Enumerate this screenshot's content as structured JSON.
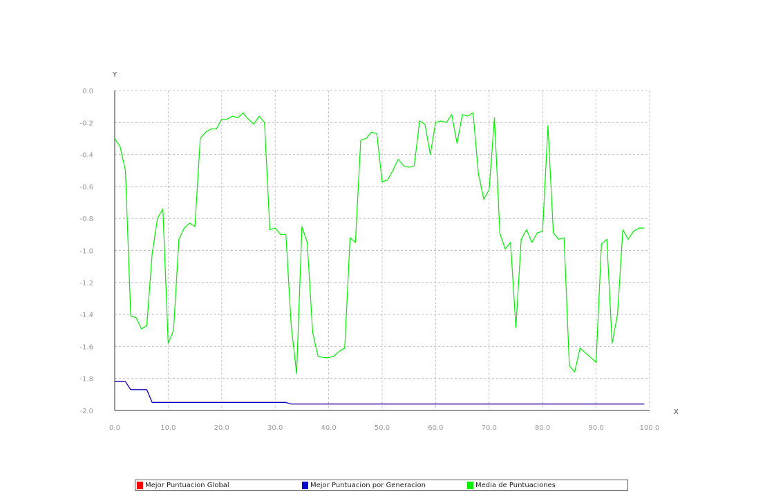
{
  "chart_data": {
    "type": "line",
    "xlabel": "X",
    "ylabel": "Y",
    "xlim": [
      0,
      100
    ],
    "ylim": [
      -2.0,
      0.0
    ],
    "x_ticks": [
      "0.0",
      "10.0",
      "20.0",
      "30.0",
      "40.0",
      "50.0",
      "60.0",
      "70.0",
      "80.0",
      "90.0",
      "100.0"
    ],
    "y_ticks": [
      "0.0",
      "-0.2",
      "-0.4",
      "-0.6",
      "-0.8",
      "-1.0",
      "-1.2",
      "-1.4",
      "-1.6",
      "-1.8",
      "-2.0"
    ],
    "grid": true,
    "legend_position": "bottom",
    "series": [
      {
        "name": "Mejor Puntuacion Global",
        "color": "#ff0000",
        "points": [
          [
            0,
            -1.82
          ],
          [
            2,
            -1.82
          ],
          [
            3,
            -1.87
          ],
          [
            6,
            -1.87
          ],
          [
            7,
            -1.95
          ],
          [
            32,
            -1.95
          ],
          [
            33,
            -1.96
          ],
          [
            99,
            -1.96
          ]
        ]
      },
      {
        "name": "Mejor Puntuacion por Generacion",
        "color": "#0000cc",
        "points": [
          [
            0,
            -1.82
          ],
          [
            2,
            -1.82
          ],
          [
            3,
            -1.87
          ],
          [
            6,
            -1.87
          ],
          [
            7,
            -1.95
          ],
          [
            32,
            -1.95
          ],
          [
            33,
            -1.96
          ],
          [
            99,
            -1.96
          ]
        ]
      },
      {
        "name": "Media de Puntuaciones",
        "color": "#00ee00",
        "points": [
          [
            0,
            -0.3
          ],
          [
            1,
            -0.35
          ],
          [
            2,
            -0.5
          ],
          [
            3,
            -1.41
          ],
          [
            4,
            -1.42
          ],
          [
            5,
            -1.49
          ],
          [
            6,
            -1.47
          ],
          [
            7,
            -1.02
          ],
          [
            8,
            -0.8
          ],
          [
            9,
            -0.74
          ],
          [
            10,
            -1.58
          ],
          [
            11,
            -1.5
          ],
          [
            12,
            -0.93
          ],
          [
            13,
            -0.86
          ],
          [
            14,
            -0.83
          ],
          [
            15,
            -0.85
          ],
          [
            16,
            -0.3
          ],
          [
            17,
            -0.26
          ],
          [
            18,
            -0.24
          ],
          [
            19,
            -0.24
          ],
          [
            20,
            -0.18
          ],
          [
            21,
            -0.18
          ],
          [
            22,
            -0.16
          ],
          [
            23,
            -0.17
          ],
          [
            24,
            -0.14
          ],
          [
            25,
            -0.18
          ],
          [
            26,
            -0.21
          ],
          [
            27,
            -0.16
          ],
          [
            28,
            -0.2
          ],
          [
            29,
            -0.87
          ],
          [
            30,
            -0.86
          ],
          [
            31,
            -0.9
          ],
          [
            32,
            -0.9
          ],
          [
            33,
            -1.47
          ],
          [
            34,
            -1.77
          ],
          [
            35,
            -0.85
          ],
          [
            36,
            -0.95
          ],
          [
            37,
            -1.51
          ],
          [
            38,
            -1.66
          ],
          [
            39,
            -1.67
          ],
          [
            40,
            -1.67
          ],
          [
            41,
            -1.66
          ],
          [
            42,
            -1.63
          ],
          [
            43,
            -1.61
          ],
          [
            44,
            -0.92
          ],
          [
            45,
            -0.95
          ],
          [
            46,
            -0.31
          ],
          [
            47,
            -0.3
          ],
          [
            48,
            -0.26
          ],
          [
            49,
            -0.27
          ],
          [
            50,
            -0.57
          ],
          [
            51,
            -0.56
          ],
          [
            52,
            -0.5
          ],
          [
            53,
            -0.43
          ],
          [
            54,
            -0.47
          ],
          [
            55,
            -0.48
          ],
          [
            56,
            -0.47
          ],
          [
            57,
            -0.19
          ],
          [
            58,
            -0.21
          ],
          [
            59,
            -0.4
          ],
          [
            60,
            -0.2
          ],
          [
            61,
            -0.19
          ],
          [
            62,
            -0.2
          ],
          [
            63,
            -0.15
          ],
          [
            64,
            -0.33
          ],
          [
            65,
            -0.15
          ],
          [
            66,
            -0.16
          ],
          [
            67,
            -0.14
          ],
          [
            68,
            -0.52
          ],
          [
            69,
            -0.68
          ],
          [
            70,
            -0.62
          ],
          [
            71,
            -0.17
          ],
          [
            72,
            -0.89
          ],
          [
            73,
            -0.99
          ],
          [
            74,
            -0.95
          ],
          [
            75,
            -1.48
          ],
          [
            76,
            -0.93
          ],
          [
            77,
            -0.87
          ],
          [
            78,
            -0.95
          ],
          [
            79,
            -0.89
          ],
          [
            80,
            -0.88
          ],
          [
            81,
            -0.22
          ],
          [
            82,
            -0.89
          ],
          [
            83,
            -0.93
          ],
          [
            84,
            -0.92
          ],
          [
            85,
            -1.72
          ],
          [
            86,
            -1.76
          ],
          [
            87,
            -1.61
          ],
          [
            88,
            -1.64
          ],
          [
            89,
            -1.67
          ],
          [
            90,
            -1.7
          ],
          [
            91,
            -0.96
          ],
          [
            92,
            -0.93
          ],
          [
            93,
            -1.58
          ],
          [
            94,
            -1.4
          ],
          [
            95,
            -0.87
          ],
          [
            96,
            -0.93
          ],
          [
            97,
            -0.88
          ],
          [
            98,
            -0.86
          ],
          [
            99,
            -0.86
          ]
        ]
      }
    ]
  }
}
